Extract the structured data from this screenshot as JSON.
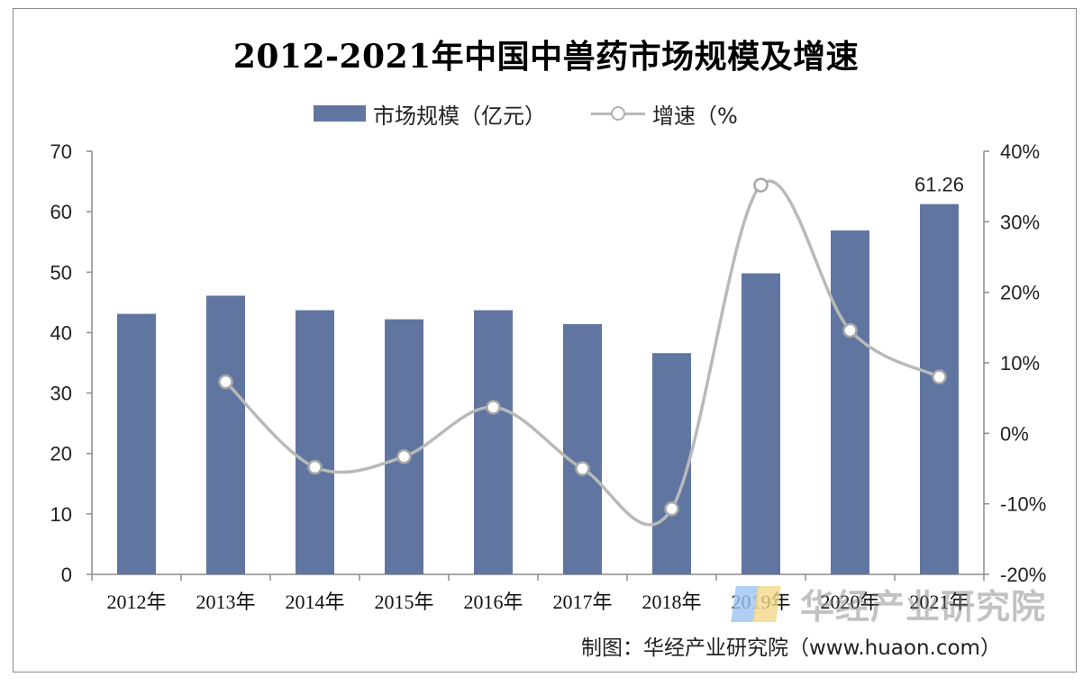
{
  "title": "2012-2021年中国中兽药市场规模及增速",
  "legend": {
    "bar_label": "市场规模（亿元）",
    "line_label": "增速（%"
  },
  "source": "制图：华经产业研究院（www.huaon.com）",
  "watermark": "华经产业研究院",
  "colors": {
    "bar": "#6076a0",
    "line": "#b9b9b9",
    "point_fill": "#ffffff"
  },
  "chart_data": {
    "type": "bar",
    "title": "2012-2021年中国中兽药市场规模及增速",
    "categories": [
      "2012年",
      "2013年",
      "2014年",
      "2015年",
      "2016年",
      "2017年",
      "2018年",
      "2019年",
      "2020年",
      "2021年"
    ],
    "series": [
      {
        "name": "市场规模（亿元）",
        "type": "bar",
        "axis": "left",
        "values": [
          43.1,
          46.1,
          43.7,
          42.2,
          43.7,
          41.4,
          36.6,
          49.8,
          56.9,
          61.26
        ]
      },
      {
        "name": "增速（%",
        "type": "line",
        "axis": "right",
        "smooth": true,
        "values": [
          null,
          7.3,
          -4.8,
          -3.3,
          3.7,
          -5.0,
          -10.7,
          35.2,
          14.6,
          8.0
        ]
      }
    ],
    "left_axis": {
      "ylim": [
        0,
        70
      ],
      "ticks": [
        "0",
        "10",
        "20",
        "30",
        "40",
        "50",
        "60",
        "70"
      ]
    },
    "right_axis": {
      "ylim": [
        -20,
        40
      ],
      "ticks": [
        "-20%",
        "-10%",
        "0%",
        "10%",
        "20%",
        "30%",
        "40%"
      ]
    },
    "data_labels": [
      {
        "category": "2021年",
        "text": "61.26"
      }
    ],
    "legend_position": "top",
    "grid": false
  }
}
